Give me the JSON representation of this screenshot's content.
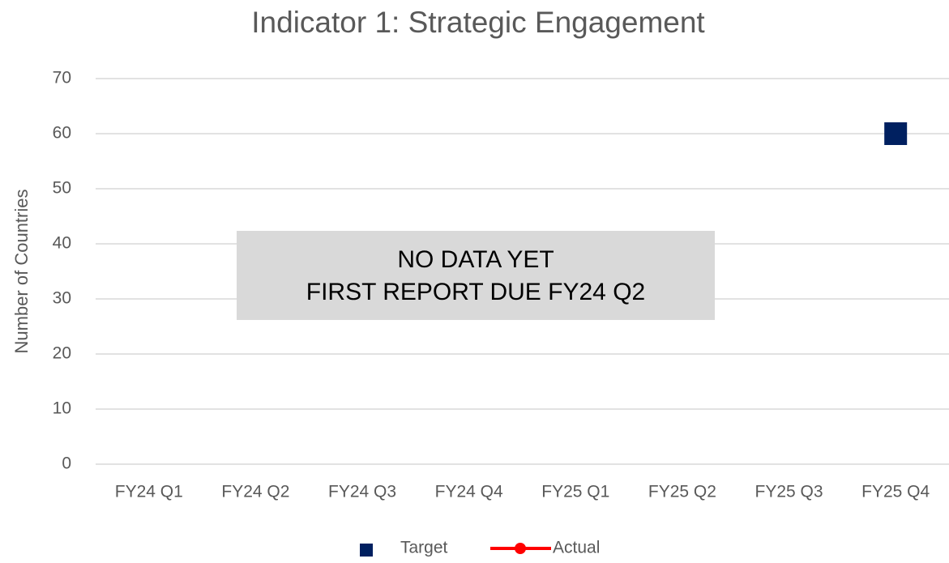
{
  "chart_data": {
    "type": "line",
    "title": "Indicator 1: Strategic Engagement",
    "y_label": "Number of Countries",
    "categories": [
      "FY24 Q1",
      "FY24 Q2",
      "FY24 Q3",
      "FY24 Q4",
      "FY25 Q1",
      "FY25 Q2",
      "FY25 Q3",
      "FY25 Q4"
    ],
    "series": [
      {
        "name": "Target",
        "color": "#002060",
        "marker": "square",
        "line": false,
        "values": [
          null,
          null,
          null,
          null,
          null,
          null,
          null,
          60
        ]
      },
      {
        "name": "Actual",
        "color": "#ff0000",
        "marker": "circle",
        "line": true,
        "values": [
          null,
          null,
          null,
          null,
          null,
          null,
          null,
          null
        ]
      }
    ],
    "ylim": [
      0,
      70
    ],
    "yticks": [
      0,
      10,
      20,
      30,
      40,
      50,
      60,
      70
    ],
    "grid": true,
    "legend": "bottom",
    "annotations": [
      "NO DATA YET",
      "FIRST REPORT DUE FY24 Q2"
    ]
  }
}
